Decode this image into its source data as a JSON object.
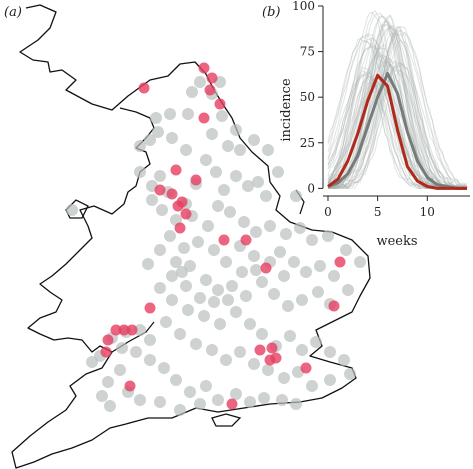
{
  "panels": {
    "a_label": "(a)",
    "b_label": "(b)"
  },
  "colors": {
    "coastline": "#111111",
    "site_grey": "#b9c1bd",
    "site_red": "#e63e62",
    "sim_curves": "#a9b2ae",
    "mean_curve": "#767c79",
    "observed_curve": "#b02a1c"
  },
  "map": {
    "marker_legend": [
      {
        "category": "grey",
        "count": 150
      },
      {
        "category": "red",
        "count": 32
      }
    ]
  },
  "chart_data": {
    "type": "line",
    "title": "",
    "xlabel": "weeks",
    "ylabel": "incidence",
    "xlim": [
      -0.3,
      14.3
    ],
    "ylim": [
      -2,
      100
    ],
    "xticks": [
      0,
      5,
      10
    ],
    "yticks": [
      0,
      25,
      50,
      75,
      100
    ],
    "grid": false,
    "legend": "none",
    "x": [
      0,
      1,
      2,
      3,
      4,
      5,
      6,
      7,
      8,
      9,
      10,
      11,
      12,
      13,
      14
    ],
    "series": [
      {
        "style": "grey-thick",
        "values": [
          1,
          3,
          8,
          18,
          34,
          50,
          63,
          52,
          31,
          15,
          6,
          2,
          1,
          0,
          0
        ]
      },
      {
        "style": "red-thick",
        "values": [
          1,
          5,
          15,
          30,
          48,
          62,
          56,
          32,
          12,
          4,
          1,
          0,
          0,
          0,
          0
        ]
      }
    ],
    "simulated_band": {
      "count": 60,
      "peak_week_range": [
        3.5,
        7.5
      ],
      "peak_height_range": [
        55,
        97
      ]
    }
  }
}
